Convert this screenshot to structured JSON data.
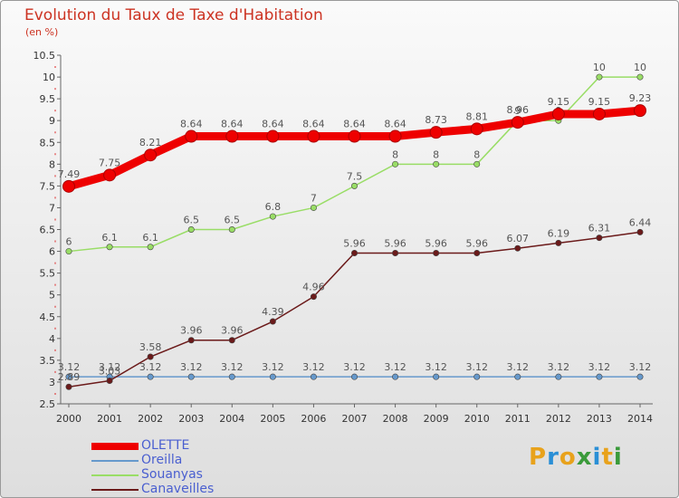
{
  "header": {
    "title": "Evolution du Taux de Taxe d'Habitation",
    "unit": "(en %)"
  },
  "logo": {
    "letters": [
      "P",
      "r",
      "o",
      "x",
      "i",
      "t",
      "i"
    ],
    "colors": [
      "#e8a21c",
      "#2a8fd6",
      "#e8a21c",
      "#3a9a3a",
      "#2a8fd6",
      "#e8a21c",
      "#3a9a3a"
    ]
  },
  "chart_data": {
    "type": "line",
    "title": "Evolution du Taux de Taxe d'Habitation",
    "ylabel": "(en %)",
    "x": [
      "2000",
      "2001",
      "2002",
      "2003",
      "2004",
      "2005",
      "2006",
      "2007",
      "2008",
      "2009",
      "2010",
      "2011",
      "2012",
      "2013",
      "2014"
    ],
    "ylim": [
      2.5,
      10.5
    ],
    "yticks": [
      "2.5",
      "3",
      "3.5",
      "4",
      "4.5",
      "5",
      "5.5",
      "6",
      "6.5",
      "7",
      "7.5",
      "8",
      "8.5",
      "9",
      "9.5",
      "10",
      "10.5"
    ],
    "grid": false,
    "legend": "bottom-left",
    "series": [
      {
        "name": "OLETTE",
        "color": "#ee0000",
        "values": [
          7.49,
          7.75,
          8.21,
          8.64,
          8.64,
          8.64,
          8.64,
          8.64,
          8.64,
          8.73,
          8.81,
          8.96,
          9.15,
          9.15,
          9.23
        ],
        "labels": [
          "7.49",
          "7.75",
          "8.21",
          "8.64",
          "8.64",
          "8.64",
          "8.64",
          "8.64",
          "8.64",
          "8.73",
          "8.81",
          "8.96",
          "9.15",
          "9.15",
          "9.23"
        ]
      },
      {
        "name": "Oreilla",
        "color": "#6699cc",
        "values": [
          3.12,
          3.12,
          3.12,
          3.12,
          3.12,
          3.12,
          3.12,
          3.12,
          3.12,
          3.12,
          3.12,
          3.12,
          3.12,
          3.12,
          3.12
        ],
        "labels": [
          "3.12",
          "3.12",
          "3.12",
          "3.12",
          "3.12",
          "3.12",
          "3.12",
          "3.12",
          "3.12",
          "3.12",
          "3.12",
          "3.12",
          "3.12",
          "3.12",
          "3.12"
        ]
      },
      {
        "name": "Souanyas",
        "color": "#99dd66",
        "values": [
          6,
          6.1,
          6.1,
          6.5,
          6.5,
          6.8,
          7,
          7.5,
          8,
          8,
          8,
          9,
          9,
          10,
          10
        ],
        "labels": [
          "6",
          "6.1",
          "6.1",
          "6.5",
          "6.5",
          "6.8",
          "7",
          "7.5",
          "8",
          "8",
          "8",
          "9",
          "9",
          "10",
          "10"
        ]
      },
      {
        "name": "Canaveilles",
        "color": "#6b1a1a",
        "values": [
          2.89,
          3.03,
          3.58,
          3.96,
          3.96,
          4.39,
          4.96,
          5.96,
          5.96,
          5.96,
          5.96,
          6.07,
          6.19,
          6.31,
          6.44
        ],
        "labels": [
          "2.89",
          "3.03",
          "3.58",
          "3.96",
          "3.96",
          "4.39",
          "4.96",
          "5.96",
          "5.96",
          "5.96",
          "5.96",
          "6.07",
          "6.19",
          "6.31",
          "6.44"
        ]
      }
    ]
  }
}
